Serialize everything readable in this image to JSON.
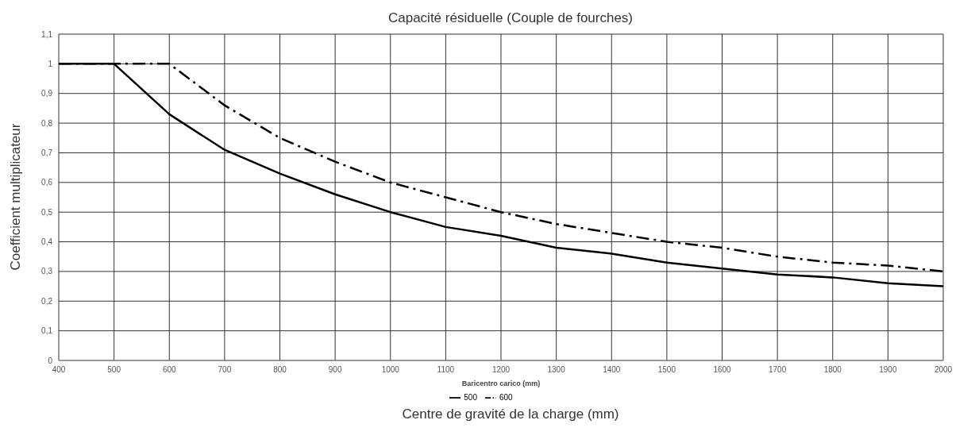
{
  "chart_data": {
    "type": "line",
    "title": "Capacité résiduelle (Couple de fourches)",
    "xlabel": "Baricentro carico (mm)",
    "ylabel": "Coefficient multiplicateur",
    "annotations": [
      "Centre de gravité de la charge (mm)"
    ],
    "x": [
      400,
      500,
      600,
      700,
      800,
      900,
      1000,
      1100,
      1200,
      1300,
      1400,
      1500,
      1600,
      1700,
      1800,
      1900,
      2000
    ],
    "series": [
      {
        "name": "500",
        "color": "#000000",
        "line_style": "solid",
        "values": [
          1,
          1,
          0.83,
          0.71,
          0.63,
          0.56,
          0.5,
          0.45,
          0.42,
          0.38,
          0.36,
          0.33,
          0.31,
          0.29,
          0.28,
          0.26,
          0.25
        ]
      },
      {
        "name": "600",
        "color": "#000000",
        "line_style": "dashed",
        "values": [
          1,
          1,
          1,
          0.86,
          0.75,
          0.67,
          0.6,
          0.55,
          0.5,
          0.46,
          0.43,
          0.4,
          0.38,
          0.35,
          0.33,
          0.32,
          0.3
        ]
      }
    ],
    "xlim": [
      400,
      2000
    ],
    "xticks": [
      400,
      500,
      600,
      700,
      800,
      900,
      1000,
      1100,
      1200,
      1300,
      1400,
      1500,
      1600,
      1700,
      1800,
      1900,
      2000
    ],
    "ylim": [
      0,
      1.1
    ],
    "yticks": [
      0,
      {
        "value": 0.1,
        "label": "0,1"
      },
      {
        "value": 0.2,
        "label": "0,2"
      },
      {
        "value": 0.3,
        "label": "0,3"
      },
      {
        "value": 0.4,
        "label": "0,4"
      },
      {
        "value": 0.5,
        "label": "0,5"
      },
      {
        "value": 0.6,
        "label": "0,6"
      },
      {
        "value": 0.7,
        "label": "0,7"
      },
      {
        "value": 0.8,
        "label": "0,8"
      },
      {
        "value": 0.9,
        "label": "0,9"
      },
      1,
      {
        "value": 1.1,
        "label": "1,1"
      }
    ],
    "grid": true,
    "legend": "bottom",
    "marker": "none"
  }
}
